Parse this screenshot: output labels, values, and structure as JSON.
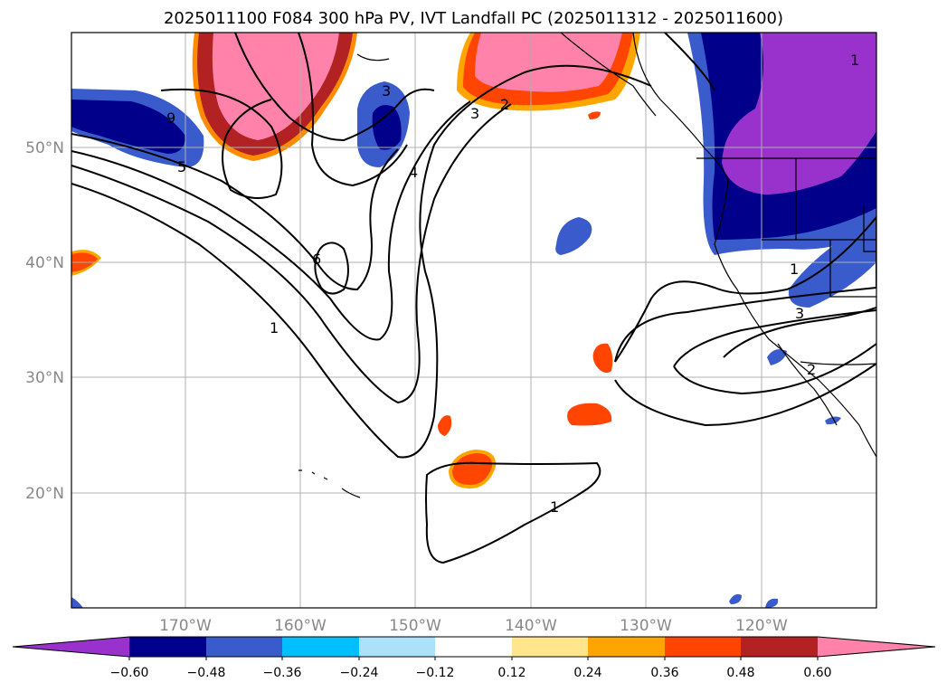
{
  "title": "2025011100 F084 300 hPa PV, IVT Landfall PC (2025011312 - 2025011600)",
  "lon_labels": [
    "170°W",
    "160°W",
    "150°W",
    "140°W",
    "130°W",
    "120°W"
  ],
  "lat_labels": [
    "50°N",
    "40°N",
    "30°N",
    "20°N"
  ],
  "contour_labels": [
    "1",
    "1",
    "1",
    "1",
    "2",
    "2",
    "3",
    "3",
    "3",
    "4",
    "5",
    "6",
    "9"
  ],
  "colorbar": {
    "labels": [
      "−0.60",
      "−0.48",
      "−0.36",
      "−0.24",
      "−0.12",
      "0.12",
      "0.24",
      "0.36",
      "0.48",
      "0.60"
    ],
    "colors": [
      "#9932CC",
      "#00008B",
      "#3A5BCB",
      "#00BFFF",
      "#ADE1FA",
      "#FFFFFF",
      "#FFE68C",
      "#FFA500",
      "#FF4500",
      "#B22222",
      "#FF82AB"
    ]
  }
}
